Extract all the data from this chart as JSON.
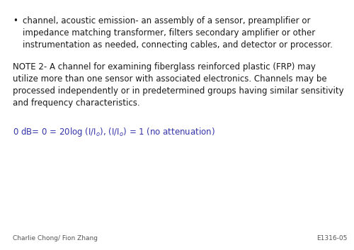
{
  "background_color": "#ffffff",
  "bullet_text": "channel, acoustic emission- an assembly of a sensor, preamplifier or\nimpedance matching transformer, filters secondary amplifier or other\ninstrumentation as needed, connecting cables, and detector or processor.",
  "note_text": "NOTE 2- A channel for examining fiberglass reinforced plastic (FRP) may\nutilize more than one sensor with associated electronics. Channels may be\nprocessed independently or in predetermined groups having similar sensitivity\nand frequency characteristics.",
  "formula_color": "#3333aa",
  "footer_left": "Charlie Chong/ Fion Zhang",
  "footer_right": "E1316-05",
  "footer_color": "#555555",
  "text_color": "#1a1a1a",
  "font_size_body": 8.5,
  "font_size_footer": 6.5
}
